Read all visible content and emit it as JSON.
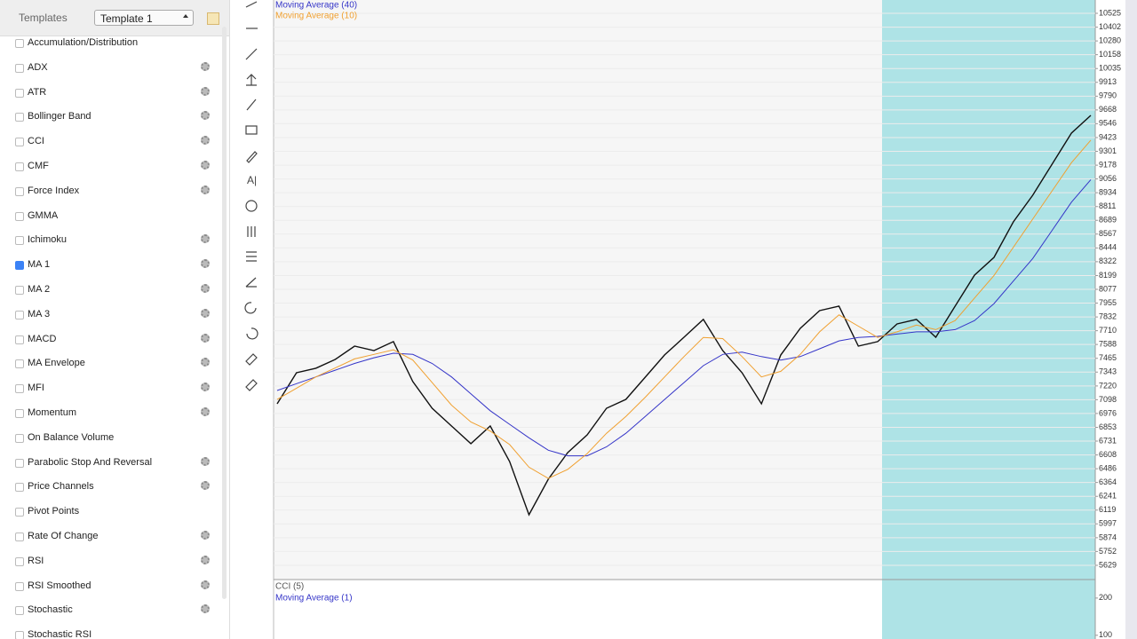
{
  "sidebar": {
    "title": "Templates",
    "template": "Template 1",
    "indicators": [
      {
        "label": "Accumulation/Distribution",
        "checked": false,
        "settings": false
      },
      {
        "label": "ADX",
        "checked": false,
        "settings": true
      },
      {
        "label": "ATR",
        "checked": false,
        "settings": true
      },
      {
        "label": "Bollinger Band",
        "checked": false,
        "settings": true
      },
      {
        "label": "CCI",
        "checked": false,
        "settings": true
      },
      {
        "label": "CMF",
        "checked": false,
        "settings": true
      },
      {
        "label": "Force Index",
        "checked": false,
        "settings": true
      },
      {
        "label": "GMMA",
        "checked": false,
        "settings": false
      },
      {
        "label": "Ichimoku",
        "checked": false,
        "settings": true
      },
      {
        "label": "MA 1",
        "checked": true,
        "settings": true
      },
      {
        "label": "MA 2",
        "checked": false,
        "settings": true
      },
      {
        "label": "MA 3",
        "checked": false,
        "settings": true
      },
      {
        "label": "MACD",
        "checked": false,
        "settings": true
      },
      {
        "label": "MA Envelope",
        "checked": false,
        "settings": true
      },
      {
        "label": "MFI",
        "checked": false,
        "settings": true
      },
      {
        "label": "Momentum",
        "checked": false,
        "settings": true
      },
      {
        "label": "On Balance Volume",
        "checked": false,
        "settings": false
      },
      {
        "label": "Parabolic Stop And Reversal",
        "checked": false,
        "settings": true
      },
      {
        "label": "Price Channels",
        "checked": false,
        "settings": true
      },
      {
        "label": "Pivot Points",
        "checked": false,
        "settings": false
      },
      {
        "label": "Rate Of Change",
        "checked": false,
        "settings": true
      },
      {
        "label": "RSI",
        "checked": false,
        "settings": true
      },
      {
        "label": "RSI Smoothed",
        "checked": false,
        "settings": true
      },
      {
        "label": "Stochastic",
        "checked": false,
        "settings": true
      },
      {
        "label": "Stochastic RSI",
        "checked": false,
        "settings": false
      }
    ]
  },
  "chart_data": [
    {
      "type": "line",
      "grid": true,
      "ylim": [
        5511,
        10643
      ],
      "yticks": [
        10525,
        10402,
        10280,
        10158,
        10035,
        9913,
        9790,
        9668,
        9546,
        9423,
        9301,
        9178,
        9056,
        8934,
        8811,
        8689,
        8567,
        8444,
        8322,
        8199,
        8077,
        7955,
        7832,
        7710,
        7588,
        7465,
        7343,
        7220,
        7098,
        6976,
        6853,
        6731,
        6608,
        6486,
        6364,
        6241,
        6119,
        5997,
        5874,
        5752,
        5629
      ],
      "series": [
        {
          "color": "#111111",
          "values": [
            7062,
            7337,
            7377,
            7455,
            7573,
            7534,
            7613,
            7259,
            7022,
            6865,
            6708,
            6865,
            6550,
            6078,
            6393,
            6629,
            6786,
            7022,
            7101,
            7298,
            7495,
            7652,
            7810,
            7534,
            7337,
            7062,
            7495,
            7731,
            7888,
            7928,
            7573,
            7613,
            7770,
            7810,
            7652,
            7928,
            8203,
            8360,
            8675,
            8911,
            9187,
            9462,
            9620
          ]
        },
        {
          "name": "Moving Average (40)",
          "color": "#3535c8",
          "values": [
            7180,
            7240,
            7300,
            7360,
            7420,
            7470,
            7510,
            7500,
            7420,
            7300,
            7150,
            7000,
            6880,
            6760,
            6650,
            6600,
            6600,
            6680,
            6800,
            6950,
            7100,
            7250,
            7400,
            7500,
            7520,
            7480,
            7450,
            7480,
            7550,
            7620,
            7650,
            7660,
            7680,
            7700,
            7700,
            7720,
            7800,
            7950,
            8150,
            8350,
            8600,
            8850,
            9050
          ]
        },
        {
          "name": "Moving Average (10)",
          "color": "#f0a030",
          "values": [
            7100,
            7200,
            7300,
            7380,
            7460,
            7500,
            7540,
            7450,
            7250,
            7050,
            6900,
            6820,
            6700,
            6500,
            6400,
            6480,
            6620,
            6800,
            6950,
            7120,
            7300,
            7480,
            7650,
            7640,
            7480,
            7300,
            7350,
            7500,
            7700,
            7850,
            7750,
            7650,
            7700,
            7760,
            7720,
            7800,
            8000,
            8200,
            8450,
            8700,
            8950,
            9200,
            9400
          ]
        }
      ]
    },
    {
      "type": "line",
      "title": "CCI (5)",
      "subtitle": "Moving Average (1)",
      "ylim": [
        90,
        245
      ],
      "yticks": [
        200,
        100
      ]
    }
  ]
}
